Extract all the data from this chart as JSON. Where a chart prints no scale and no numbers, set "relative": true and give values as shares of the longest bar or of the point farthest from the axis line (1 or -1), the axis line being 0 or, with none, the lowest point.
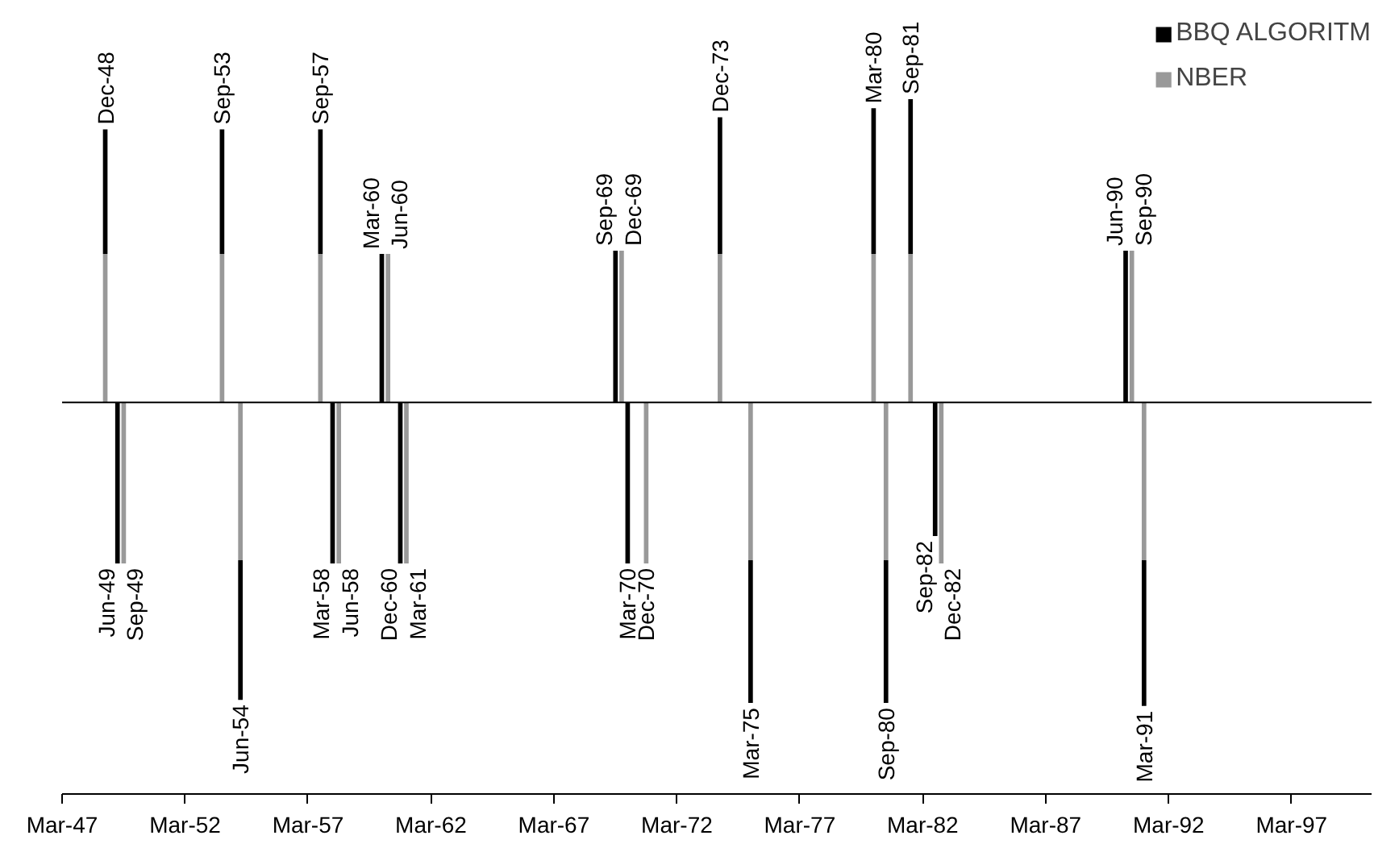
{
  "chart_data": {
    "type": "bar",
    "stacked": true,
    "relative": true,
    "legend": "top right",
    "grid": false,
    "xlim": [
      "1947-03",
      "2000-06"
    ],
    "xticks": [
      {
        "value": "1947-03",
        "label": "Mar-47"
      },
      {
        "value": "1952-03",
        "label": "Mar-52"
      },
      {
        "value": "1957-03",
        "label": "Mar-57"
      },
      {
        "value": "1962-03",
        "label": "Mar-62"
      },
      {
        "value": "1967-03",
        "label": "Mar-67"
      },
      {
        "value": "1972-03",
        "label": "Mar-72"
      },
      {
        "value": "1977-03",
        "label": "Mar-77"
      },
      {
        "value": "1982-03",
        "label": "Mar-82"
      },
      {
        "value": "1987-03",
        "label": "Mar-87"
      },
      {
        "value": "1992-03",
        "label": "Mar-92"
      },
      {
        "value": "1997-03",
        "label": "Mar-97"
      }
    ],
    "x": [
      "1948-12",
      "1949-06",
      "1949-09",
      "1953-09",
      "1954-06",
      "1957-09",
      "1958-03",
      "1958-06",
      "1960-03",
      "1960-06",
      "1960-12",
      "1961-03",
      "1969-09",
      "1969-12",
      "1970-03",
      "1970-12",
      "1973-12",
      "1975-03",
      "1980-03",
      "1980-09",
      "1981-09",
      "1982-09",
      "1982-12",
      "1990-06",
      "1990-09",
      "1991-03"
    ],
    "series": [
      {
        "name": "NBER",
        "color": "#999999",
        "values": [
          0.49,
          null,
          -0.53,
          0.49,
          -0.52,
          0.49,
          null,
          -0.53,
          null,
          0.49,
          null,
          -0.53,
          null,
          0.5,
          null,
          -0.53,
          0.49,
          -0.52,
          0.49,
          -0.52,
          0.49,
          null,
          -0.53,
          null,
          0.5,
          -0.52
        ]
      },
      {
        "name": "BBQ ALGORITM",
        "color": "#000000",
        "values": [
          0.41,
          -0.53,
          null,
          0.41,
          -0.46,
          0.41,
          -0.53,
          null,
          0.49,
          null,
          -0.53,
          null,
          0.5,
          null,
          -0.53,
          null,
          0.45,
          -0.47,
          0.48,
          -0.47,
          0.51,
          -0.44,
          null,
          0.5,
          null,
          -0.48
        ]
      }
    ],
    "annotations": [
      {
        "text": "Dec-48",
        "x": "1948-12",
        "y": 0.9
      },
      {
        "text": "Jun-49",
        "x": "1949-06",
        "y": -0.53
      },
      {
        "text": "Sep-49",
        "x": "1949-09",
        "y": -0.53
      },
      {
        "text": "Sep-53",
        "x": "1953-09",
        "y": 0.9
      },
      {
        "text": "Jun-54",
        "x": "1954-06",
        "y": -0.98
      },
      {
        "text": "Sep-57",
        "x": "1957-09",
        "y": 0.9
      },
      {
        "text": "Mar-58",
        "x": "1958-03",
        "y": -0.53
      },
      {
        "text": "Jun-58",
        "x": "1958-06",
        "y": -0.53
      },
      {
        "text": "Mar-60",
        "x": "1960-03",
        "y": 0.49
      },
      {
        "text": "Jun-60",
        "x": "1960-06",
        "y": 0.49
      },
      {
        "text": "Dec-60",
        "x": "1960-12",
        "y": -0.53
      },
      {
        "text": "Mar-61",
        "x": "1961-03",
        "y": -0.53
      },
      {
        "text": "Sep-69",
        "x": "1969-09",
        "y": 0.5
      },
      {
        "text": "Dec-69",
        "x": "1969-12",
        "y": 0.5
      },
      {
        "text": "Mar-70",
        "x": "1970-03",
        "y": -0.53
      },
      {
        "text": "Dec-70",
        "x": "1970-12",
        "y": -0.53
      },
      {
        "text": "Dec-73",
        "x": "1973-12",
        "y": 0.94
      },
      {
        "text": "Mar-75",
        "x": "1975-03",
        "y": -0.99
      },
      {
        "text": "Mar-80",
        "x": "1980-03",
        "y": 0.97
      },
      {
        "text": "Sep-80",
        "x": "1980-09",
        "y": -0.99
      },
      {
        "text": "Sep-81",
        "x": "1981-09",
        "y": 1.0
      },
      {
        "text": "Sep-82",
        "x": "1982-09",
        "y": -0.44
      },
      {
        "text": "Dec-82",
        "x": "1982-12",
        "y": -0.53
      },
      {
        "text": "Jun-90",
        "x": "1990-06",
        "y": 0.5
      },
      {
        "text": "Sep-90",
        "x": "1990-09",
        "y": 0.5
      },
      {
        "text": "Mar-91",
        "x": "1991-03",
        "y": -1.0
      }
    ]
  }
}
